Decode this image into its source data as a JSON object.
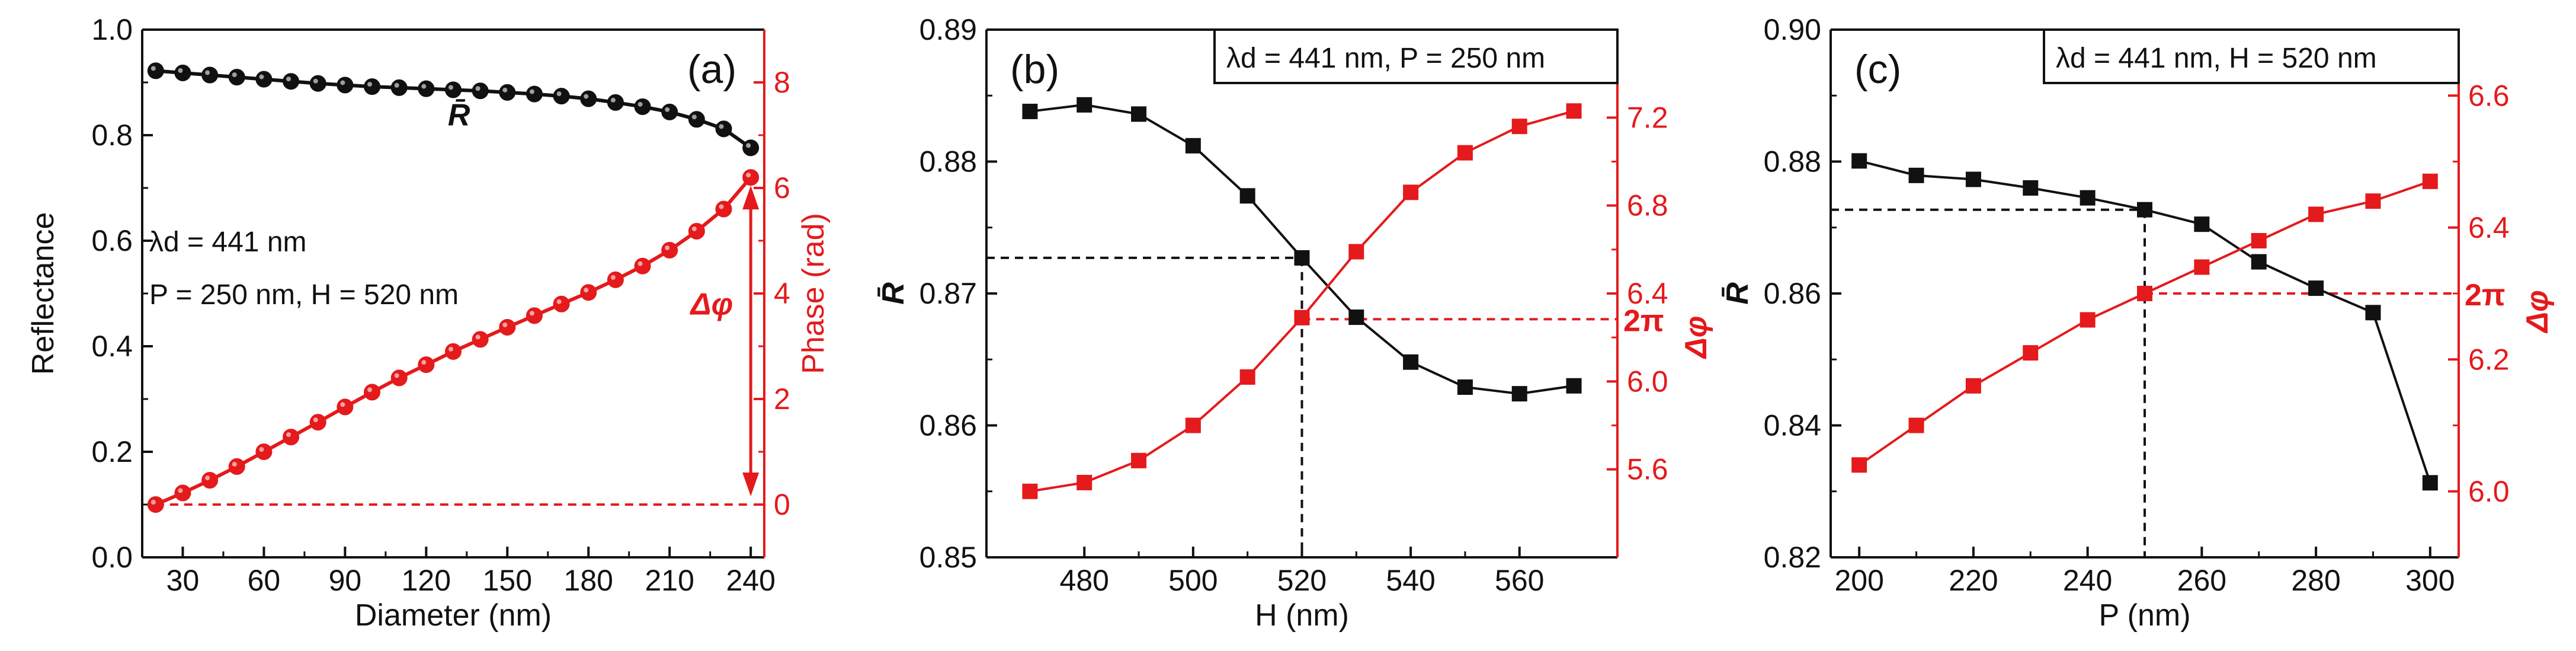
{
  "colors": {
    "reflectance": "#111111",
    "phase": "#e41a1c",
    "background": "#ffffff"
  },
  "chart_data": [
    {
      "type": "line",
      "panel_label": "(a)",
      "xlabel": "Diameter (nm)",
      "ylabel": "Reflectance",
      "y2label": "Phase (rad)",
      "xlim": [
        15,
        245
      ],
      "ylim": [
        0,
        1
      ],
      "y2lim": [
        -1,
        9
      ],
      "xticks": [
        30,
        60,
        90,
        120,
        150,
        180,
        210,
        240
      ],
      "yticks": [
        0.0,
        0.2,
        0.4,
        0.6,
        0.8,
        1.0
      ],
      "ytick_labels": [
        "0.0",
        "0.2",
        "0.4",
        "0.6",
        "0.8",
        "1.0"
      ],
      "y2ticks": [
        0,
        2,
        4,
        6,
        8
      ],
      "x": [
        20,
        30,
        40,
        50,
        60,
        70,
        80,
        90,
        100,
        110,
        120,
        130,
        140,
        150,
        160,
        170,
        180,
        190,
        200,
        210,
        220,
        230,
        240
      ],
      "series": [
        {
          "name": "R",
          "label": "R̄",
          "axis": "left",
          "color": "#111111",
          "values": [
            0.922,
            0.918,
            0.914,
            0.91,
            0.906,
            0.902,
            0.898,
            0.895,
            0.892,
            0.89,
            0.888,
            0.886,
            0.884,
            0.881,
            0.878,
            0.874,
            0.869,
            0.862,
            0.854,
            0.844,
            0.83,
            0.812,
            0.776
          ]
        },
        {
          "name": "Phase",
          "axis": "right",
          "color": "#e41a1c",
          "values": [
            0.0,
            0.22,
            0.46,
            0.72,
            1.0,
            1.28,
            1.56,
            1.85,
            2.13,
            2.4,
            2.65,
            2.9,
            3.13,
            3.36,
            3.58,
            3.8,
            4.02,
            4.26,
            4.52,
            4.82,
            5.18,
            5.6,
            6.2
          ]
        }
      ],
      "reference_line": {
        "axis": "right",
        "y": 0,
        "from_x": 20,
        "to_x": 240
      },
      "arrow": {
        "x": 240,
        "from": 0,
        "to": 6.2
      },
      "annotations": [
        "λd = 441 nm",
        "P = 250 nm, H = 520 nm"
      ],
      "delta_label": "Δφ"
    },
    {
      "type": "line",
      "panel_label": "(b)",
      "legend_text": "λd = 441 nm, P = 250 nm",
      "xlabel": "H (nm)",
      "ylabel": "R̄",
      "y2label": "Δφ",
      "xlim": [
        462,
        578
      ],
      "ylim": [
        0.85,
        0.89
      ],
      "y2lim": [
        5.2,
        7.6
      ],
      "xticks": [
        480,
        500,
        520,
        540,
        560
      ],
      "yticks": [
        0.85,
        0.86,
        0.87,
        0.88,
        0.89
      ],
      "ytick_labels": [
        "0.85",
        "0.86",
        "0.87",
        "0.88",
        "0.89"
      ],
      "y2ticks": [
        5.6,
        6.0,
        6.4,
        6.8,
        7.2
      ],
      "y2tick_labels": [
        "5.6",
        "6.0",
        "6.4",
        "6.8",
        "7.2"
      ],
      "x": [
        470,
        480,
        490,
        500,
        510,
        520,
        530,
        540,
        550,
        560,
        570
      ],
      "series": [
        {
          "name": "R",
          "label": "R̄",
          "axis": "left",
          "color": "#111111",
          "values": [
            0.8838,
            0.8843,
            0.8836,
            0.8812,
            0.8774,
            0.8727,
            0.8682,
            0.8648,
            0.8629,
            0.8624,
            0.863
          ]
        },
        {
          "name": "Δφ",
          "axis": "right",
          "color": "#e41a1c",
          "values": [
            5.5,
            5.54,
            5.64,
            5.8,
            6.02,
            6.29,
            6.59,
            6.86,
            7.04,
            7.16,
            7.23
          ]
        }
      ],
      "guides": {
        "x": 520,
        "y_left": 0.8727,
        "y_right": 6.283,
        "label": "2π"
      }
    },
    {
      "type": "line",
      "panel_label": "(c)",
      "legend_text": "λd = 441 nm, H = 520 nm",
      "xlabel": "P (nm)",
      "ylabel": "R̄",
      "y2label": "Δφ",
      "xlim": [
        195,
        305
      ],
      "ylim": [
        0.82,
        0.9
      ],
      "y2lim": [
        5.9,
        6.7
      ],
      "xticks": [
        200,
        220,
        240,
        260,
        280,
        300
      ],
      "yticks": [
        0.82,
        0.84,
        0.86,
        0.88,
        0.9
      ],
      "ytick_labels": [
        "0.82",
        "0.84",
        "0.86",
        "0.88",
        "0.90"
      ],
      "y2ticks": [
        6.0,
        6.2,
        6.4,
        6.6
      ],
      "y2tick_labels": [
        "6.0",
        "6.2",
        "6.4",
        "6.6"
      ],
      "x": [
        200,
        210,
        220,
        230,
        240,
        250,
        260,
        270,
        280,
        290,
        300
      ],
      "series": [
        {
          "name": "R",
          "label": "R̄",
          "axis": "left",
          "color": "#111111",
          "values": [
            0.8801,
            0.8779,
            0.8773,
            0.876,
            0.8745,
            0.8727,
            0.8705,
            0.8648,
            0.8608,
            0.8571,
            0.8313
          ]
        },
        {
          "name": "Δφ",
          "axis": "right",
          "color": "#e41a1c",
          "values": [
            6.04,
            6.1,
            6.16,
            6.21,
            6.26,
            6.3,
            6.34,
            6.38,
            6.42,
            6.44,
            6.47
          ]
        }
      ],
      "guides": {
        "x": 250,
        "y_left": 0.8727,
        "y_right": 6.3,
        "label": "2π"
      }
    }
  ]
}
